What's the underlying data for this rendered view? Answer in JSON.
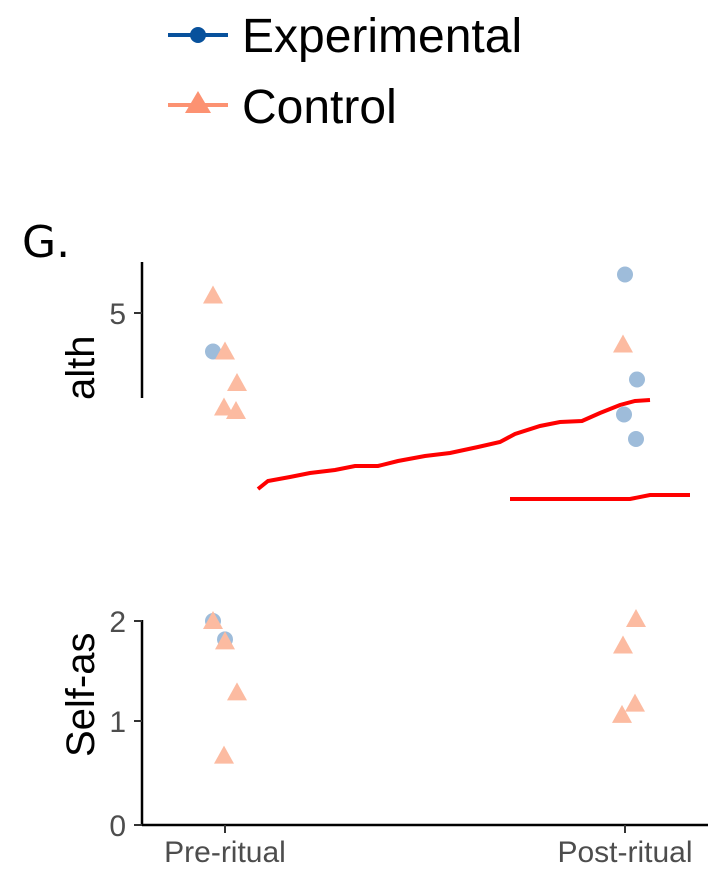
{
  "panel_label": "G.",
  "chart_data": {
    "type": "scatter",
    "legend": {
      "position": "top",
      "entries": [
        {
          "name": "Experimental",
          "color": "#08519c",
          "marker": "circle"
        },
        {
          "name": "Control",
          "color": "#fc9272",
          "marker": "triangle"
        }
      ]
    },
    "colors": {
      "experimental_points": "#9ebcda",
      "control_points": "#fcbba1",
      "overlay_line": "#ff0000",
      "axis": "#000000",
      "tick_text": "#4d4d4d"
    },
    "categories": [
      "Pre-ritual",
      "Post-ritual"
    ],
    "grid": false,
    "top_panel": {
      "ylabel": "alth",
      "yticks": [
        "5"
      ],
      "ylim": [
        3.1,
        6.0
      ],
      "series": [
        {
          "name": "Experimental",
          "marker": "circle",
          "points": [
            {
              "category": "Pre-ritual",
              "y": 4.45
            },
            {
              "category": "Post-ritual",
              "y": 5.55
            },
            {
              "category": "Post-ritual",
              "y": 4.05
            },
            {
              "category": "Post-ritual",
              "y": 3.55
            },
            {
              "category": "Post-ritual",
              "y": 3.2
            }
          ]
        },
        {
          "name": "Control",
          "marker": "triangle",
          "points": [
            {
              "category": "Pre-ritual",
              "y": 5.25
            },
            {
              "category": "Pre-ritual",
              "y": 4.45
            },
            {
              "category": "Pre-ritual",
              "y": 4.0
            },
            {
              "category": "Pre-ritual",
              "y": 3.65
            },
            {
              "category": "Pre-ritual",
              "y": 3.6
            },
            {
              "category": "Post-ritual",
              "y": 4.55
            }
          ]
        }
      ]
    },
    "bottom_panel": {
      "ylabel": "Self-as",
      "yticks": [
        "0",
        "1",
        "2"
      ],
      "ylim": [
        0,
        2
      ],
      "series": [
        {
          "name": "Experimental",
          "marker": "circle",
          "points": [
            {
              "category": "Pre-ritual",
              "y": 2.0
            },
            {
              "category": "Pre-ritual",
              "y": 1.82
            }
          ]
        },
        {
          "name": "Control",
          "marker": "triangle",
          "points": [
            {
              "category": "Pre-ritual",
              "y": 2.0
            },
            {
              "category": "Pre-ritual",
              "y": 1.8
            },
            {
              "category": "Pre-ritual",
              "y": 1.3
            },
            {
              "category": "Pre-ritual",
              "y": 0.68
            },
            {
              "category": "Post-ritual",
              "y": 2.02
            },
            {
              "category": "Post-ritual",
              "y": 1.76
            },
            {
              "category": "Post-ritual",
              "y": 1.19
            },
            {
              "category": "Post-ritual",
              "y": 1.08
            }
          ]
        }
      ]
    }
  }
}
